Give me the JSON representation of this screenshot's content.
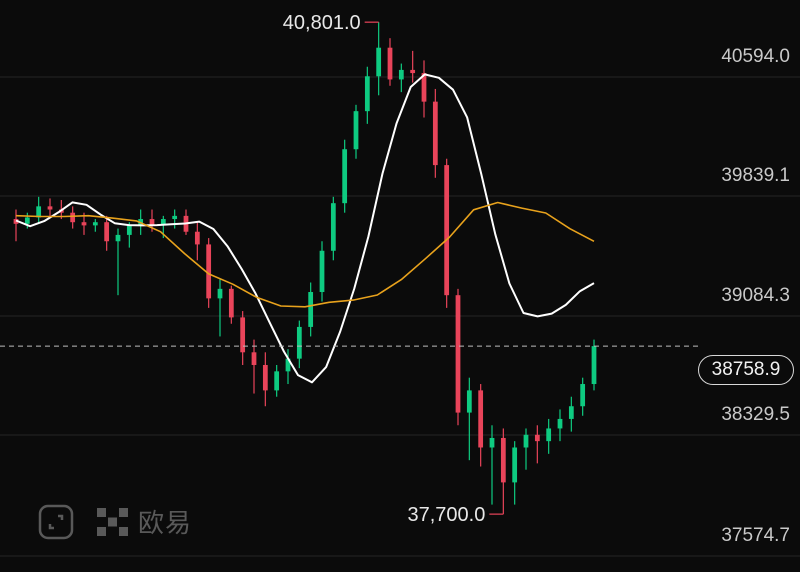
{
  "chart_data": {
    "type": "candlestick",
    "y_axis_labels": [
      "40594.0",
      "39839.1",
      "39084.3",
      "38329.5",
      "37574.7"
    ],
    "ylim": [
      37400,
      40900
    ],
    "grid": true,
    "current_price": "38758.9",
    "annotations": {
      "high": "40,801.0",
      "low": "37,700.0"
    },
    "colors": {
      "up": "#0ecb81",
      "down": "#e9445a",
      "ma_fast": "#ffffff",
      "ma_slow": "#e8a21c",
      "background": "#0b0b0b"
    },
    "series": [
      {
        "name": "",
        "values": [
          39551,
          39515,
          39547,
          39602,
          39665,
          39650,
          39588,
          39534,
          39522,
          39520,
          39522,
          39527,
          39532,
          39544,
          39497,
          39389,
          39246,
          39089,
          38906,
          38725,
          38576,
          38531,
          38627,
          38851,
          39122,
          39450,
          39847,
          40164,
          40392,
          40472,
          40450,
          40375,
          40201,
          39845,
          39464,
          39154,
          38968,
          38946,
          38964,
          39019,
          39105,
          39156
        ]
      },
      {
        "name": "",
        "values": [
          39581,
          39576,
          39576,
          39581,
          39566,
          39548,
          39480,
          39342,
          39214,
          39149,
          39066,
          39012,
          39007,
          39035,
          39049,
          39081,
          39178,
          39310,
          39446,
          39618,
          39664,
          39629,
          39598,
          39499,
          39420
        ]
      }
    ],
    "candles": [
      [
        39560,
        39620,
        39420,
        39530
      ],
      [
        39530,
        39600,
        39500,
        39570
      ],
      [
        39570,
        39700,
        39530,
        39640
      ],
      [
        39640,
        39690,
        39580,
        39620
      ],
      [
        39620,
        39680,
        39560,
        39600
      ],
      [
        39600,
        39640,
        39500,
        39540
      ],
      [
        39540,
        39600,
        39460,
        39520
      ],
      [
        39520,
        39560,
        39480,
        39540
      ],
      [
        39540,
        39580,
        39360,
        39420
      ],
      [
        39420,
        39500,
        39080,
        39460
      ],
      [
        39460,
        39540,
        39380,
        39520
      ],
      [
        39520,
        39620,
        39460,
        39560
      ],
      [
        39560,
        39620,
        39480,
        39520
      ],
      [
        39520,
        39580,
        39440,
        39560
      ],
      [
        39560,
        39620,
        39500,
        39580
      ],
      [
        39580,
        39620,
        39460,
        39480
      ],
      [
        39480,
        39540,
        39300,
        39400
      ],
      [
        39400,
        39440,
        39000,
        39060
      ],
      [
        39060,
        39180,
        38820,
        39120
      ],
      [
        39120,
        39140,
        38900,
        38940
      ],
      [
        38940,
        38980,
        38640,
        38720
      ],
      [
        38720,
        38800,
        38460,
        38640
      ],
      [
        38640,
        38720,
        38380,
        38480
      ],
      [
        38480,
        38640,
        38440,
        38600
      ],
      [
        38600,
        38740,
        38520,
        38680
      ],
      [
        38680,
        38920,
        38620,
        38880
      ],
      [
        38880,
        39160,
        38820,
        39100
      ],
      [
        39100,
        39420,
        39040,
        39360
      ],
      [
        39360,
        39700,
        39300,
        39660
      ],
      [
        39660,
        40060,
        39600,
        40000
      ],
      [
        40000,
        40280,
        39940,
        40240
      ],
      [
        40240,
        40520,
        40160,
        40460
      ],
      [
        40460,
        40801,
        40340,
        40640
      ],
      [
        40640,
        40700,
        40400,
        40440
      ],
      [
        40440,
        40540,
        40360,
        40500
      ],
      [
        40500,
        40620,
        40420,
        40480
      ],
      [
        40480,
        40560,
        40200,
        40300
      ],
      [
        40300,
        40380,
        39820,
        39900
      ],
      [
        39900,
        39940,
        39000,
        39080
      ],
      [
        39080,
        39120,
        38260,
        38340
      ],
      [
        38340,
        38560,
        38040,
        38480
      ],
      [
        38480,
        38520,
        38000,
        38120
      ],
      [
        38120,
        38260,
        37760,
        38180
      ],
      [
        38180,
        38240,
        37700,
        37900
      ],
      [
        37900,
        38160,
        37760,
        38120
      ],
      [
        38120,
        38240,
        37980,
        38200
      ],
      [
        38200,
        38260,
        38020,
        38160
      ],
      [
        38160,
        38300,
        38080,
        38240
      ],
      [
        38240,
        38360,
        38160,
        38300
      ],
      [
        38300,
        38440,
        38220,
        38380
      ],
      [
        38380,
        38560,
        38320,
        38520
      ],
      [
        38520,
        38800,
        38480,
        38759
      ]
    ]
  },
  "watermark": {
    "text": "欧易"
  }
}
